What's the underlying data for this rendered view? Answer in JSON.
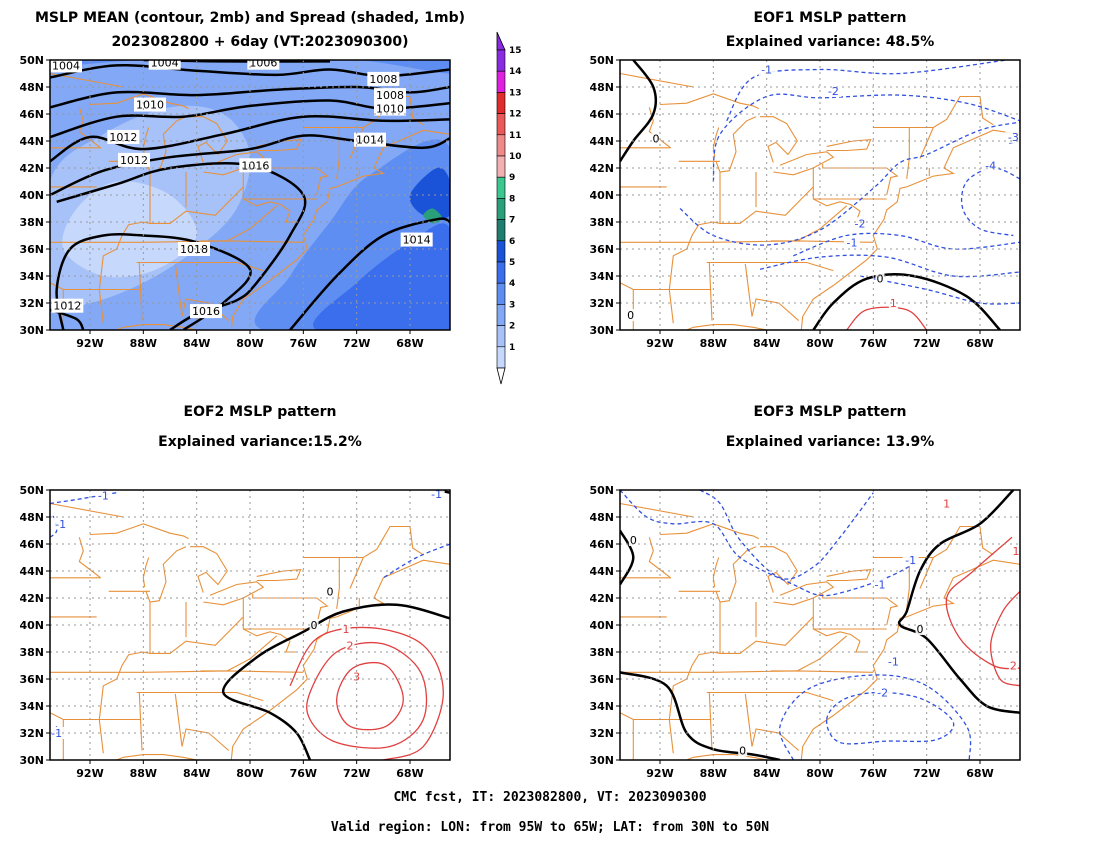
{
  "panels": {
    "mean": {
      "title1": "MSLP MEAN (contour, 2mb) and Spread (shaded, 1mb)",
      "title2": "2023082800 + 6day (VT:2023090300)"
    },
    "eof1": {
      "title1": "EOF1 MSLP pattern",
      "title2": "Explained variance: 48.5%"
    },
    "eof2": {
      "title1": "EOF2 MSLP pattern",
      "title2": "Explained variance:15.2%"
    },
    "eof3": {
      "title1": "EOF3 MSLP pattern",
      "title2": "Explained variance: 13.9%"
    }
  },
  "footer": {
    "line1": "CMC fcst, IT: 2023082800, VT: 2023090300",
    "line2": "Valid region: LON: from 95W to 65W; LAT: from 30N to 50N"
  },
  "colors": {
    "land_outline": "#e8913a",
    "contour_positive": "#e04040",
    "contour_negative": "#3050e0",
    "contour_zero": "#000000",
    "mean_contour": "#000000"
  },
  "chart_data": [
    {
      "type": "heatmap",
      "panel": "mean",
      "title": "MSLP MEAN (contour, 2mb) and Spread (shaded, 1mb)",
      "subtitle": "2023082800 + 6day (VT:2023090300)",
      "xlim": [
        "95W",
        "65W"
      ],
      "ylim": [
        "30N",
        "50N"
      ],
      "x_ticks": [
        "92W",
        "88W",
        "84W",
        "80W",
        "76W",
        "72W",
        "68W"
      ],
      "y_ticks": [
        "30N",
        "32N",
        "34N",
        "36N",
        "38N",
        "40N",
        "42N",
        "44N",
        "46N",
        "48N",
        "50N"
      ],
      "colorbar": {
        "levels": [
          "1",
          "2",
          "3",
          "4",
          "5",
          "6",
          "7",
          "8",
          "9",
          "10",
          "11",
          "12",
          "13",
          "14",
          "15"
        ],
        "colors": [
          "#c6d8fb",
          "#a6c2f9",
          "#82a8f6",
          "#5f8ef2",
          "#3a6eec",
          "#1a53d8",
          "#1f7d71",
          "#2aa07a",
          "#3bc890",
          "#f4b0b0",
          "#f08a8a",
          "#ec5858",
          "#e02c2c",
          "#e020e0",
          "#8a2be2"
        ]
      },
      "contour_labels": [
        "1004",
        "1004",
        "1006",
        "1008",
        "1008",
        "1010",
        "1010",
        "1012",
        "1012",
        "1014",
        "1016",
        "1018",
        "1014",
        "1016",
        "1012"
      ],
      "grid": true
    },
    {
      "type": "heatmap",
      "panel": "eof1",
      "title": "EOF1 MSLP pattern",
      "subtitle": "Explained variance: 48.5%",
      "xlim": [
        "95W",
        "65W"
      ],
      "ylim": [
        "30N",
        "50N"
      ],
      "x_ticks": [
        "92W",
        "88W",
        "84W",
        "80W",
        "76W",
        "72W",
        "68W"
      ],
      "y_ticks": [
        "30N",
        "32N",
        "34N",
        "36N",
        "38N",
        "40N",
        "42N",
        "44N",
        "46N",
        "48N",
        "50N"
      ],
      "contour_labels": [
        "-1",
        "-2",
        "-3",
        "-4",
        "-2",
        "-1",
        "0",
        "0",
        "1",
        "0"
      ],
      "grid": true
    },
    {
      "type": "heatmap",
      "panel": "eof2",
      "title": "EOF2 MSLP pattern",
      "subtitle": "Explained variance:15.2%",
      "xlim": [
        "95W",
        "65W"
      ],
      "ylim": [
        "30N",
        "50N"
      ],
      "x_ticks": [
        "92W",
        "88W",
        "84W",
        "80W",
        "76W",
        "72W",
        "68W"
      ],
      "y_ticks": [
        "30N",
        "32N",
        "34N",
        "36N",
        "38N",
        "40N",
        "42N",
        "44N",
        "46N",
        "48N",
        "50N"
      ],
      "contour_labels": [
        "-1",
        "-1",
        "-1",
        "0",
        "0",
        "1",
        "2",
        "3",
        "-1"
      ],
      "grid": true
    },
    {
      "type": "heatmap",
      "panel": "eof3",
      "title": "EOF3 MSLP pattern",
      "subtitle": "Explained variance: 13.9%",
      "xlim": [
        "95W",
        "65W"
      ],
      "ylim": [
        "30N",
        "50N"
      ],
      "x_ticks": [
        "92W",
        "88W",
        "84W",
        "80W",
        "76W",
        "72W",
        "68W"
      ],
      "y_ticks": [
        "30N",
        "32N",
        "34N",
        "36N",
        "38N",
        "40N",
        "42N",
        "44N",
        "46N",
        "48N",
        "50N"
      ],
      "contour_labels": [
        "0",
        "-1",
        "-1",
        "-1",
        "-2",
        "0",
        "0",
        "1",
        "2",
        "1"
      ],
      "grid": true
    }
  ]
}
